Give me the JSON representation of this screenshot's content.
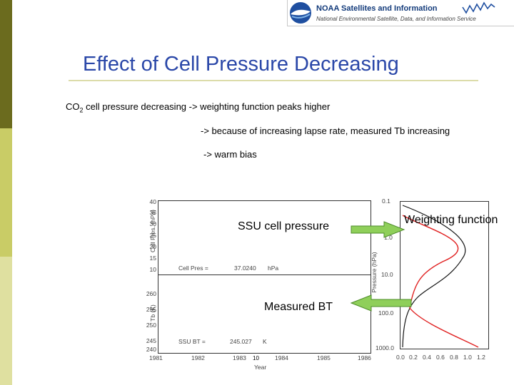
{
  "header": {
    "logo_title": "NOAA Satellites and Information",
    "logo_subtitle": "National Environmental Satellite, Data, and Information Service"
  },
  "slide": {
    "title": "Effect of Cell Pressure Decreasing",
    "line1_prefix": "CO",
    "line1_sub": "2",
    "line1_rest": " cell pressure decreasing -> weighting function peaks higher",
    "line2": "-> because of increasing lapse rate, measured Tb increasing",
    "line3": "-> warm bias"
  },
  "left_plot": {
    "top": {
      "ylabel": "Cell Pres. (hPa)",
      "yticks": [
        "40",
        "35",
        "30",
        "25",
        "20",
        "15",
        "10"
      ],
      "readout_label": "Cell Pres =",
      "readout_value": "37.0240",
      "readout_unit": "hPa"
    },
    "bottom": {
      "ylabel": "Tb (K)",
      "yticks": [
        "260",
        "255",
        "250",
        "245",
        "240"
      ],
      "readout_label": "SSU BT =",
      "readout_value": "245.027",
      "readout_unit": "K"
    },
    "xticks": [
      "1981",
      "1982",
      "1983",
      "1984",
      "1985",
      "1986"
    ],
    "xlabel": "Year"
  },
  "right_plot": {
    "ylabel": "Pressure (hPa)",
    "yticks": [
      "0.1",
      "1.0",
      "10.0",
      "100.0",
      "1000.0"
    ],
    "xticks": [
      "0.0",
      "0.2",
      "0.4",
      "0.6",
      "0.8",
      "1.0",
      "1.2"
    ]
  },
  "annotations": {
    "ssu_label": "SSU cell pressure",
    "wf_label": "Weighting function",
    "bt_label": "Measured BT",
    "page_number": "10"
  },
  "colors": {
    "title": "#2a47a8",
    "arrow_fill": "#8fcf5a",
    "arrow_stroke": "#4e8c2a",
    "curve_red": "#e02020",
    "curve_black": "#111111"
  }
}
